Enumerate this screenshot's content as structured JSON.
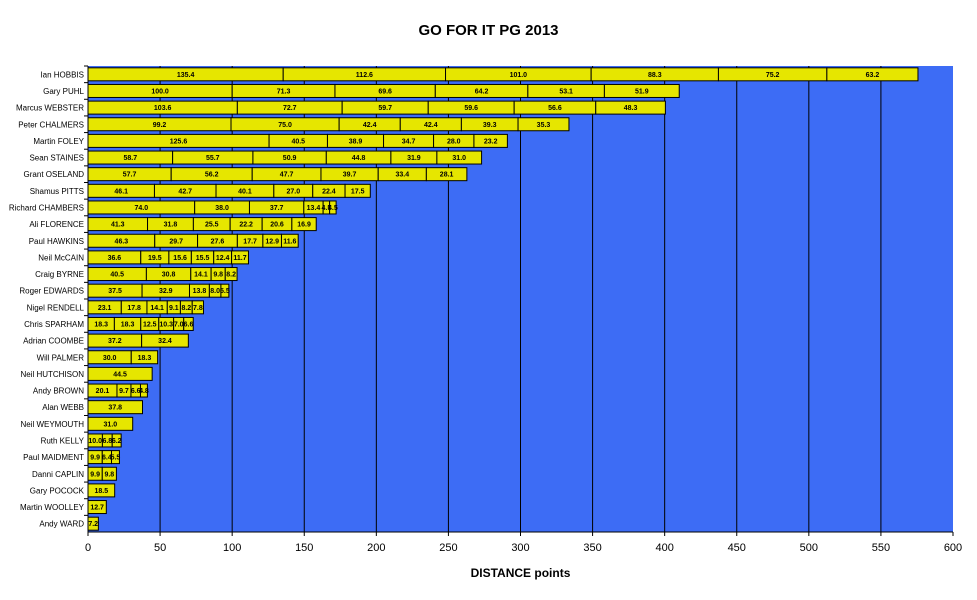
{
  "chart_data": {
    "type": "bar",
    "orientation": "horizontal",
    "stacked": true,
    "title": "GO FOR IT PG 2013",
    "xlabel": "DISTANCE points",
    "ylabel": "",
    "xlim": [
      0,
      600
    ],
    "xticks": [
      0,
      50,
      100,
      150,
      200,
      250,
      300,
      350,
      400,
      450,
      500,
      550,
      600
    ],
    "grid": true,
    "legend": "none",
    "colors": {
      "plot_bg": "#3d6cf5",
      "bar_fill": "#e6e600",
      "bar_edge": "#000000",
      "grid": "#000000"
    },
    "rows": [
      {
        "name": "Ian HOBBIS",
        "values": [
          135.4,
          112.6,
          101.0,
          88.3,
          75.2,
          63.2
        ]
      },
      {
        "name": "Gary PUHL",
        "values": [
          100.0,
          71.3,
          69.6,
          64.2,
          53.1,
          51.9
        ]
      },
      {
        "name": "Marcus WEBSTER",
        "values": [
          103.6,
          72.7,
          59.7,
          59.6,
          56.6,
          48.3
        ]
      },
      {
        "name": "Peter CHALMERS",
        "values": [
          99.2,
          75.0,
          42.4,
          42.4,
          39.3,
          35.3
        ]
      },
      {
        "name": "Martin FOLEY",
        "values": [
          125.6,
          40.5,
          38.9,
          34.7,
          28.0,
          23.2
        ]
      },
      {
        "name": "Sean STAINES",
        "values": [
          58.7,
          55.7,
          50.9,
          44.8,
          31.9,
          31.0
        ]
      },
      {
        "name": "Grant OSELAND",
        "values": [
          57.7,
          56.2,
          47.7,
          39.7,
          33.4,
          28.1
        ]
      },
      {
        "name": "Shamus PITTS",
        "values": [
          46.1,
          42.7,
          40.1,
          27.0,
          22.4,
          17.5
        ]
      },
      {
        "name": "Richard CHAMBERS",
        "values": [
          74.0,
          38.0,
          37.7,
          13.4,
          4.5,
          4.5
        ]
      },
      {
        "name": "Ali FLORENCE",
        "values": [
          41.3,
          31.8,
          25.5,
          22.2,
          20.6,
          16.9
        ]
      },
      {
        "name": "Paul HAWKINS",
        "values": [
          46.3,
          29.7,
          27.6,
          17.7,
          12.9,
          11.6
        ]
      },
      {
        "name": "Neil McCAIN",
        "values": [
          36.6,
          19.5,
          15.6,
          15.5,
          12.4,
          11.7
        ]
      },
      {
        "name": "Craig BYRNE",
        "values": [
          40.5,
          30.8,
          14.1,
          9.8,
          8.2
        ]
      },
      {
        "name": "Roger EDWARDS",
        "values": [
          37.5,
          32.9,
          13.8,
          8.0,
          5.5
        ]
      },
      {
        "name": "Nigel RENDELL",
        "values": [
          23.1,
          17.8,
          14.1,
          9.1,
          8.2,
          7.8
        ]
      },
      {
        "name": "Chris SPARHAM",
        "values": [
          18.3,
          18.3,
          12.5,
          10.3,
          7.0,
          6.6
        ]
      },
      {
        "name": "Adrian COOMBE",
        "values": [
          37.2,
          32.4
        ]
      },
      {
        "name": "Will PALMER",
        "values": [
          30.0,
          18.3
        ]
      },
      {
        "name": "Neil HUTCHISON",
        "values": [
          44.5
        ]
      },
      {
        "name": "Andy BROWN",
        "values": [
          20.1,
          9.7,
          6.6,
          4.8
        ]
      },
      {
        "name": "Alan WEBB",
        "values": [
          37.8
        ]
      },
      {
        "name": "Neil WEYMOUTH",
        "values": [
          31.0
        ]
      },
      {
        "name": "Ruth KELLY",
        "values": [
          10.0,
          6.8,
          6.2
        ]
      },
      {
        "name": "Paul MAIDMENT",
        "values": [
          9.9,
          6.4,
          5.5
        ]
      },
      {
        "name": "Danni CAPLIN",
        "values": [
          9.9,
          9.8
        ]
      },
      {
        "name": "Gary POCOCK",
        "values": [
          18.5
        ]
      },
      {
        "name": "Martin WOOLLEY",
        "values": [
          12.7
        ]
      },
      {
        "name": "Andy WARD",
        "values": [
          7.2
        ]
      }
    ]
  }
}
